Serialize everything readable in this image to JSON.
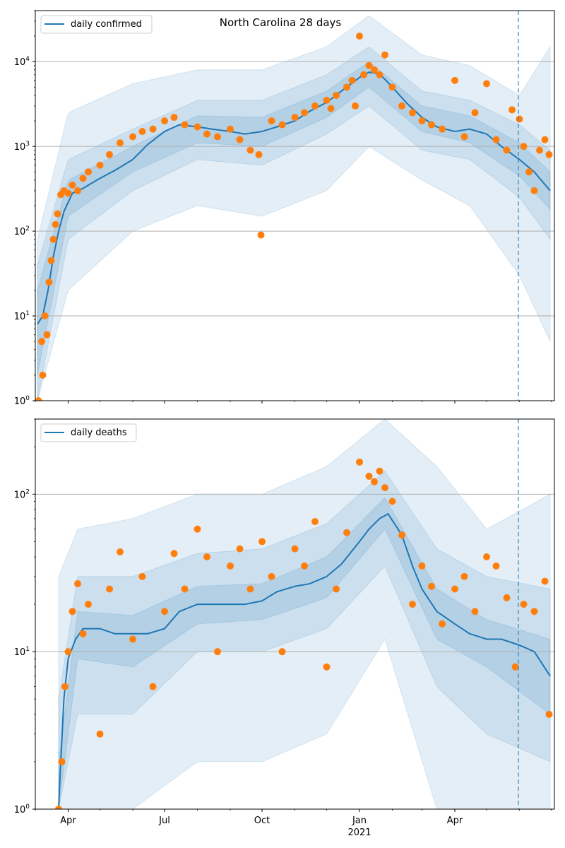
{
  "figure": {
    "title": "North Carolina 28 days"
  },
  "chart_data": [
    {
      "type": "line",
      "title": "North Carolina 28 days",
      "legend": {
        "label": "daily confirmed",
        "placement": "top-left"
      },
      "yscale": "log",
      "ylim": [
        1,
        40000
      ],
      "y_ticks": [
        {
          "value": 1,
          "base": "10",
          "exp": "0"
        },
        {
          "value": 10,
          "base": "10",
          "exp": "1"
        },
        {
          "value": 100,
          "base": "10",
          "exp": "2"
        },
        {
          "value": 1000,
          "base": "10",
          "exp": "3"
        },
        {
          "value": 10000,
          "base": "10",
          "exp": "4"
        }
      ],
      "grid": "horizontal",
      "forecast_start": "2021-05-31",
      "colors": {
        "line": "#1f77b4",
        "points": "#ff7f0e",
        "band": "#1f77b4",
        "vline": "#1f77b4"
      },
      "line": {
        "dates": [
          "2020-03-03",
          "2020-03-08",
          "2020-03-13",
          "2020-03-18",
          "2020-03-23",
          "2020-03-28",
          "2020-04-05",
          "2020-04-15",
          "2020-05-01",
          "2020-05-15",
          "2020-06-01",
          "2020-06-15",
          "2020-07-01",
          "2020-07-15",
          "2020-08-01",
          "2020-08-15",
          "2020-09-01",
          "2020-09-15",
          "2020-10-01",
          "2020-10-15",
          "2020-11-01",
          "2020-11-15",
          "2020-12-01",
          "2020-12-15",
          "2021-01-01",
          "2021-01-10",
          "2021-01-20",
          "2021-02-01",
          "2021-02-15",
          "2021-03-01",
          "2021-03-15",
          "2021-04-01",
          "2021-04-15",
          "2021-05-01",
          "2021-05-15",
          "2021-06-01",
          "2021-06-15",
          "2021-06-30"
        ],
        "values": [
          8,
          10,
          20,
          50,
          100,
          170,
          280,
          320,
          420,
          520,
          700,
          1050,
          1500,
          1800,
          1700,
          1600,
          1500,
          1400,
          1500,
          1700,
          2000,
          2600,
          3300,
          4500,
          6500,
          7500,
          7200,
          5000,
          3200,
          2200,
          1700,
          1500,
          1600,
          1400,
          1000,
          700,
          500,
          300
        ]
      },
      "band50": {
        "dates": [
          "2020-03-03",
          "2020-04-01",
          "2020-06-01",
          "2020-08-01",
          "2020-10-01",
          "2020-12-01",
          "2021-01-10",
          "2021-03-01",
          "2021-04-15",
          "2021-06-01",
          "2021-06-30"
        ],
        "low": [
          2,
          150,
          500,
          1100,
          1000,
          2200,
          5000,
          1500,
          1100,
          450,
          180
        ],
        "high": [
          20,
          400,
          1000,
          2300,
          2200,
          4500,
          10000,
          3000,
          2300,
          1100,
          500
        ]
      },
      "band80": {
        "dates": [
          "2020-03-03",
          "2020-04-01",
          "2020-06-01",
          "2020-08-01",
          "2020-10-01",
          "2020-12-01",
          "2021-01-10",
          "2021-03-01",
          "2021-04-15",
          "2021-06-01",
          "2021-06-30"
        ],
        "low": [
          1,
          80,
          300,
          700,
          600,
          1400,
          3000,
          900,
          700,
          250,
          80
        ],
        "high": [
          40,
          700,
          1600,
          3500,
          3500,
          7000,
          15000,
          4500,
          3500,
          1800,
          900
        ]
      },
      "band95": {
        "dates": [
          "2020-03-03",
          "2020-04-01",
          "2020-06-01",
          "2020-08-01",
          "2020-10-01",
          "2020-12-01",
          "2021-01-10",
          "2021-03-01",
          "2021-04-15",
          "2021-06-01",
          "2021-06-30"
        ],
        "low": [
          1,
          20,
          100,
          200,
          150,
          300,
          1000,
          400,
          200,
          30,
          5
        ],
        "high": [
          80,
          2500,
          5500,
          8000,
          8000,
          15000,
          35000,
          12000,
          9000,
          4000,
          15000
        ]
      },
      "points": {
        "dates": [
          "2020-03-04",
          "2020-03-07",
          "2020-03-08",
          "2020-03-10",
          "2020-03-12",
          "2020-03-14",
          "2020-03-16",
          "2020-03-18",
          "2020-03-20",
          "2020-03-22",
          "2020-03-25",
          "2020-03-28",
          "2020-04-01",
          "2020-04-05",
          "2020-04-10",
          "2020-04-15",
          "2020-04-20",
          "2020-05-01",
          "2020-05-10",
          "2020-05-20",
          "2020-06-01",
          "2020-06-10",
          "2020-06-20",
          "2020-07-01",
          "2020-07-10",
          "2020-07-20",
          "2020-08-01",
          "2020-08-10",
          "2020-08-20",
          "2020-09-01",
          "2020-09-10",
          "2020-09-20",
          "2020-09-30",
          "2020-09-28",
          "2020-10-10",
          "2020-10-20",
          "2020-11-01",
          "2020-11-10",
          "2020-11-20",
          "2020-12-01",
          "2020-12-05",
          "2020-12-10",
          "2020-12-20",
          "2020-12-25",
          "2020-12-28",
          "2021-01-01",
          "2021-01-05",
          "2021-01-10",
          "2021-01-15",
          "2021-01-20",
          "2021-01-25",
          "2021-02-01",
          "2021-02-10",
          "2021-02-20",
          "2021-03-01",
          "2021-03-10",
          "2021-03-20",
          "2021-04-01",
          "2021-04-10",
          "2021-04-20",
          "2021-05-01",
          "2021-05-10",
          "2021-05-20",
          "2021-05-25",
          "2021-06-01",
          "2021-06-05",
          "2021-06-10",
          "2021-06-15",
          "2021-06-20",
          "2021-06-25",
          "2021-06-29"
        ],
        "values": [
          1,
          5,
          2,
          10,
          6,
          25,
          45,
          80,
          120,
          160,
          270,
          300,
          280,
          350,
          300,
          420,
          500,
          600,
          800,
          1100,
          1300,
          1500,
          1600,
          2000,
          2200,
          1800,
          1700,
          1400,
          1300,
          1600,
          1200,
          900,
          90,
          800,
          2000,
          1800,
          2200,
          2500,
          3000,
          3500,
          2800,
          4000,
          5000,
          6000,
          3000,
          20000,
          7000,
          9000,
          8000,
          7000,
          12000,
          5000,
          3000,
          2500,
          2000,
          1800,
          1600,
          6000,
          1300,
          2500,
          5500,
          1200,
          900,
          2700,
          2100,
          1000,
          500,
          300,
          900,
          1200,
          800
        ]
      }
    },
    {
      "type": "line",
      "legend": {
        "label": "daily deaths",
        "placement": "top-left"
      },
      "yscale": "log",
      "ylim": [
        1,
        300
      ],
      "y_ticks": [
        {
          "value": 1,
          "base": "10",
          "exp": "0"
        },
        {
          "value": 10,
          "base": "10",
          "exp": "1"
        },
        {
          "value": 100,
          "base": "10",
          "exp": "2"
        }
      ],
      "grid": "horizontal",
      "forecast_start": "2021-05-31",
      "x_ticks": [
        {
          "date": "2020-04-01",
          "label": "Apr",
          "sublabel": ""
        },
        {
          "date": "2020-07-01",
          "label": "Jul",
          "sublabel": ""
        },
        {
          "date": "2020-10-01",
          "label": "Oct",
          "sublabel": ""
        },
        {
          "date": "2021-01-01",
          "label": "Jan",
          "sublabel": "2021"
        },
        {
          "date": "2021-04-01",
          "label": "Apr",
          "sublabel": ""
        }
      ],
      "line": {
        "dates": [
          "2020-03-23",
          "2020-03-25",
          "2020-03-28",
          "2020-04-01",
          "2020-04-08",
          "2020-04-15",
          "2020-05-01",
          "2020-05-15",
          "2020-06-01",
          "2020-06-15",
          "2020-07-01",
          "2020-07-15",
          "2020-08-01",
          "2020-08-15",
          "2020-09-01",
          "2020-09-15",
          "2020-10-01",
          "2020-10-15",
          "2020-11-01",
          "2020-11-15",
          "2020-12-01",
          "2020-12-15",
          "2021-01-01",
          "2021-01-10",
          "2021-01-20",
          "2021-01-28",
          "2021-02-10",
          "2021-02-20",
          "2021-03-01",
          "2021-03-15",
          "2021-04-01",
          "2021-04-15",
          "2021-05-01",
          "2021-05-15",
          "2021-06-01",
          "2021-06-15",
          "2021-06-30"
        ],
        "values": [
          1,
          2,
          5,
          9,
          12,
          14,
          14,
          13,
          13,
          13,
          14,
          18,
          20,
          20,
          20,
          20,
          21,
          24,
          26,
          27,
          30,
          36,
          50,
          60,
          70,
          75,
          55,
          35,
          25,
          18,
          15,
          13,
          12,
          12,
          11,
          10,
          7
        ]
      },
      "band50": {
        "dates": [
          "2020-03-23",
          "2020-04-10",
          "2020-06-01",
          "2020-08-01",
          "2020-10-01",
          "2020-12-01",
          "2021-01-25",
          "2021-03-15",
          "2021-05-01",
          "2021-06-30"
        ],
        "low": [
          1,
          9,
          8,
          15,
          16,
          22,
          60,
          12,
          8,
          4
        ],
        "high": [
          2,
          18,
          17,
          26,
          27,
          40,
          95,
          25,
          16,
          12
        ]
      },
      "band80": {
        "dates": [
          "2020-03-23",
          "2020-04-10",
          "2020-06-01",
          "2020-08-01",
          "2020-10-01",
          "2020-12-01",
          "2021-01-25",
          "2021-03-15",
          "2021-05-01",
          "2021-06-30"
        ],
        "low": [
          1,
          4,
          4,
          10,
          10,
          14,
          35,
          6,
          3,
          2
        ],
        "high": [
          5,
          30,
          30,
          42,
          45,
          65,
          140,
          45,
          30,
          25
        ]
      },
      "band95": {
        "dates": [
          "2020-03-23",
          "2020-04-10",
          "2020-06-01",
          "2020-08-01",
          "2020-10-01",
          "2020-12-01",
          "2021-01-25",
          "2021-03-15",
          "2021-05-01",
          "2021-06-30"
        ],
        "low": [
          1,
          1,
          1,
          2,
          2,
          3,
          12,
          1,
          1,
          1
        ],
        "high": [
          30,
          60,
          70,
          100,
          100,
          150,
          300,
          150,
          60,
          100
        ]
      },
      "points": {
        "dates": [
          "2020-03-23",
          "2020-03-26",
          "2020-03-29",
          "2020-04-01",
          "2020-04-05",
          "2020-04-10",
          "2020-04-15",
          "2020-04-20",
          "2020-05-01",
          "2020-05-10",
          "2020-05-20",
          "2020-06-01",
          "2020-06-10",
          "2020-06-20",
          "2020-07-01",
          "2020-07-10",
          "2020-07-20",
          "2020-08-01",
          "2020-08-10",
          "2020-08-20",
          "2020-09-01",
          "2020-09-10",
          "2020-09-20",
          "2020-10-01",
          "2020-10-10",
          "2020-10-20",
          "2020-11-01",
          "2020-11-10",
          "2020-11-20",
          "2020-12-01",
          "2020-12-10",
          "2020-12-20",
          "2021-01-01",
          "2021-01-10",
          "2021-01-15",
          "2021-01-20",
          "2021-01-25",
          "2021-02-01",
          "2021-02-10",
          "2021-02-20",
          "2021-03-01",
          "2021-03-10",
          "2021-03-20",
          "2021-04-01",
          "2021-04-10",
          "2021-04-20",
          "2021-05-01",
          "2021-05-10",
          "2021-05-20",
          "2021-05-28",
          "2021-06-05",
          "2021-06-15",
          "2021-06-25",
          "2021-06-29"
        ],
        "values": [
          1,
          2,
          6,
          10,
          18,
          27,
          13,
          20,
          3,
          25,
          43,
          12,
          30,
          6,
          18,
          42,
          25,
          60,
          40,
          10,
          35,
          45,
          25,
          50,
          30,
          10,
          45,
          35,
          67,
          8,
          25,
          57,
          160,
          130,
          120,
          140,
          110,
          90,
          55,
          20,
          35,
          26,
          15,
          25,
          30,
          18,
          40,
          35,
          22,
          8,
          20,
          18,
          28,
          4
        ]
      }
    }
  ]
}
